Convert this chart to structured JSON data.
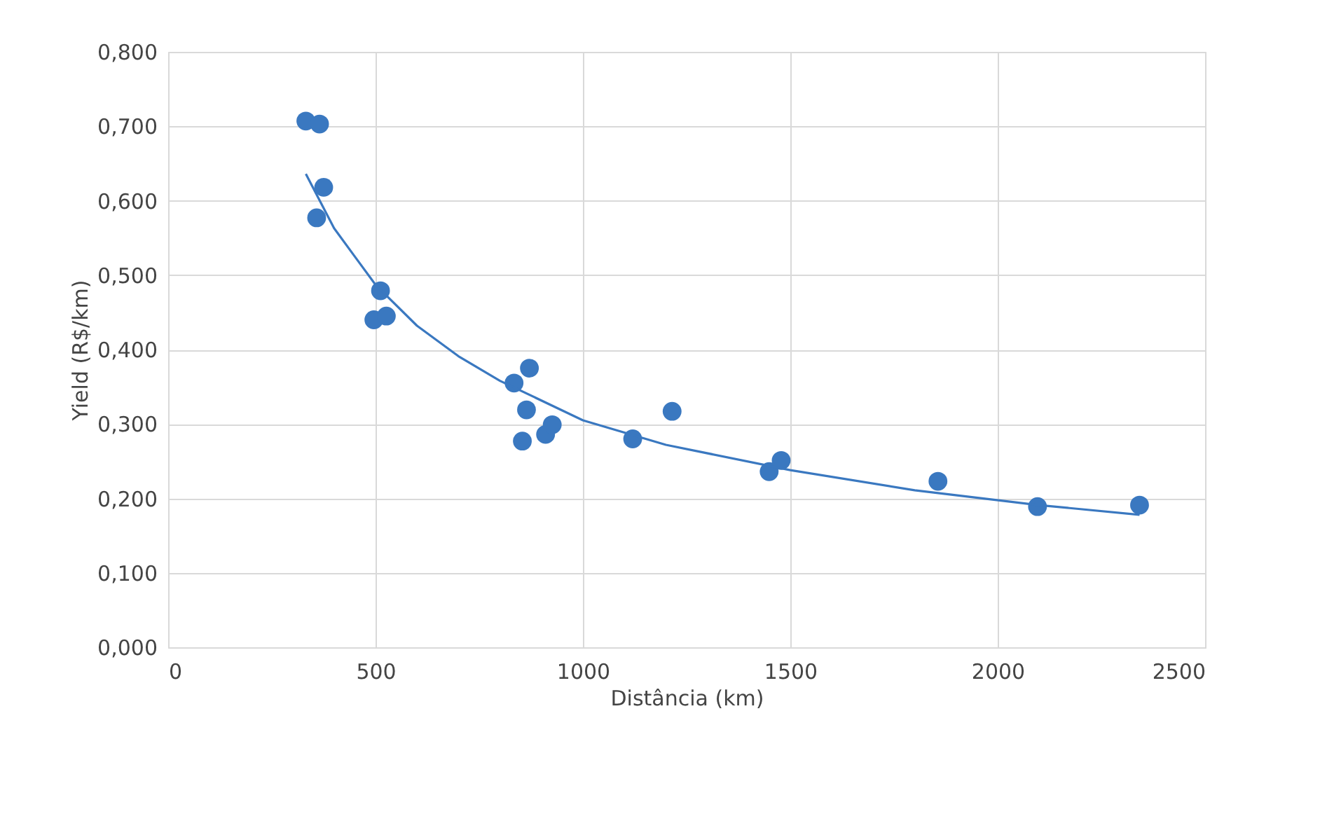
{
  "chart_data": {
    "type": "scatter",
    "xlabel": "Distância (km)",
    "ylabel": "Yield (R$/km)",
    "xlim": [
      0,
      2500
    ],
    "xticks": [
      0,
      500,
      1000,
      1500,
      2000,
      2500
    ],
    "ylim": [
      0,
      0.8
    ],
    "yticks": [
      {
        "value": 0,
        "label": "0,000"
      },
      {
        "value": 0.1,
        "label": "0,100"
      },
      {
        "value": 0.2,
        "label": "0,200"
      },
      {
        "value": 0.3,
        "label": "0,300"
      },
      {
        "value": 0.4,
        "label": "0,400"
      },
      {
        "value": 0.5,
        "label": "0,500"
      },
      {
        "value": 0.6,
        "label": "0,600"
      },
      {
        "value": 0.7,
        "label": "0,700"
      },
      {
        "value": 0.8,
        "label": "0,800"
      }
    ],
    "grid": true,
    "marker": "circle",
    "series": [
      {
        "color": "#3a78c0",
        "x": [
          332,
          365,
          375,
          358,
          512,
          496,
          526,
          834,
          871,
          864,
          854,
          910,
          926,
          1120,
          1215,
          1449,
          1478,
          1856,
          2096,
          2342
        ],
        "values": [
          0.707,
          0.703,
          0.618,
          0.577,
          0.479,
          0.44,
          0.445,
          0.355,
          0.375,
          0.319,
          0.277,
          0.286,
          0.299,
          0.28,
          0.317,
          0.236,
          0.251,
          0.223,
          0.189,
          0.191
        ]
      },
      {
        "type": "line",
        "color": "#3a78c0",
        "marker": "none",
        "line_style": "solid",
        "x": [
          332,
          400,
          500,
          600,
          700,
          800,
          1000,
          1200,
          1500,
          1800,
          2100,
          2342
        ],
        "values": [
          0.636,
          0.563,
          0.487,
          0.432,
          0.391,
          0.358,
          0.305,
          0.272,
          0.238,
          0.211,
          0.191,
          0.178
        ]
      }
    ]
  }
}
